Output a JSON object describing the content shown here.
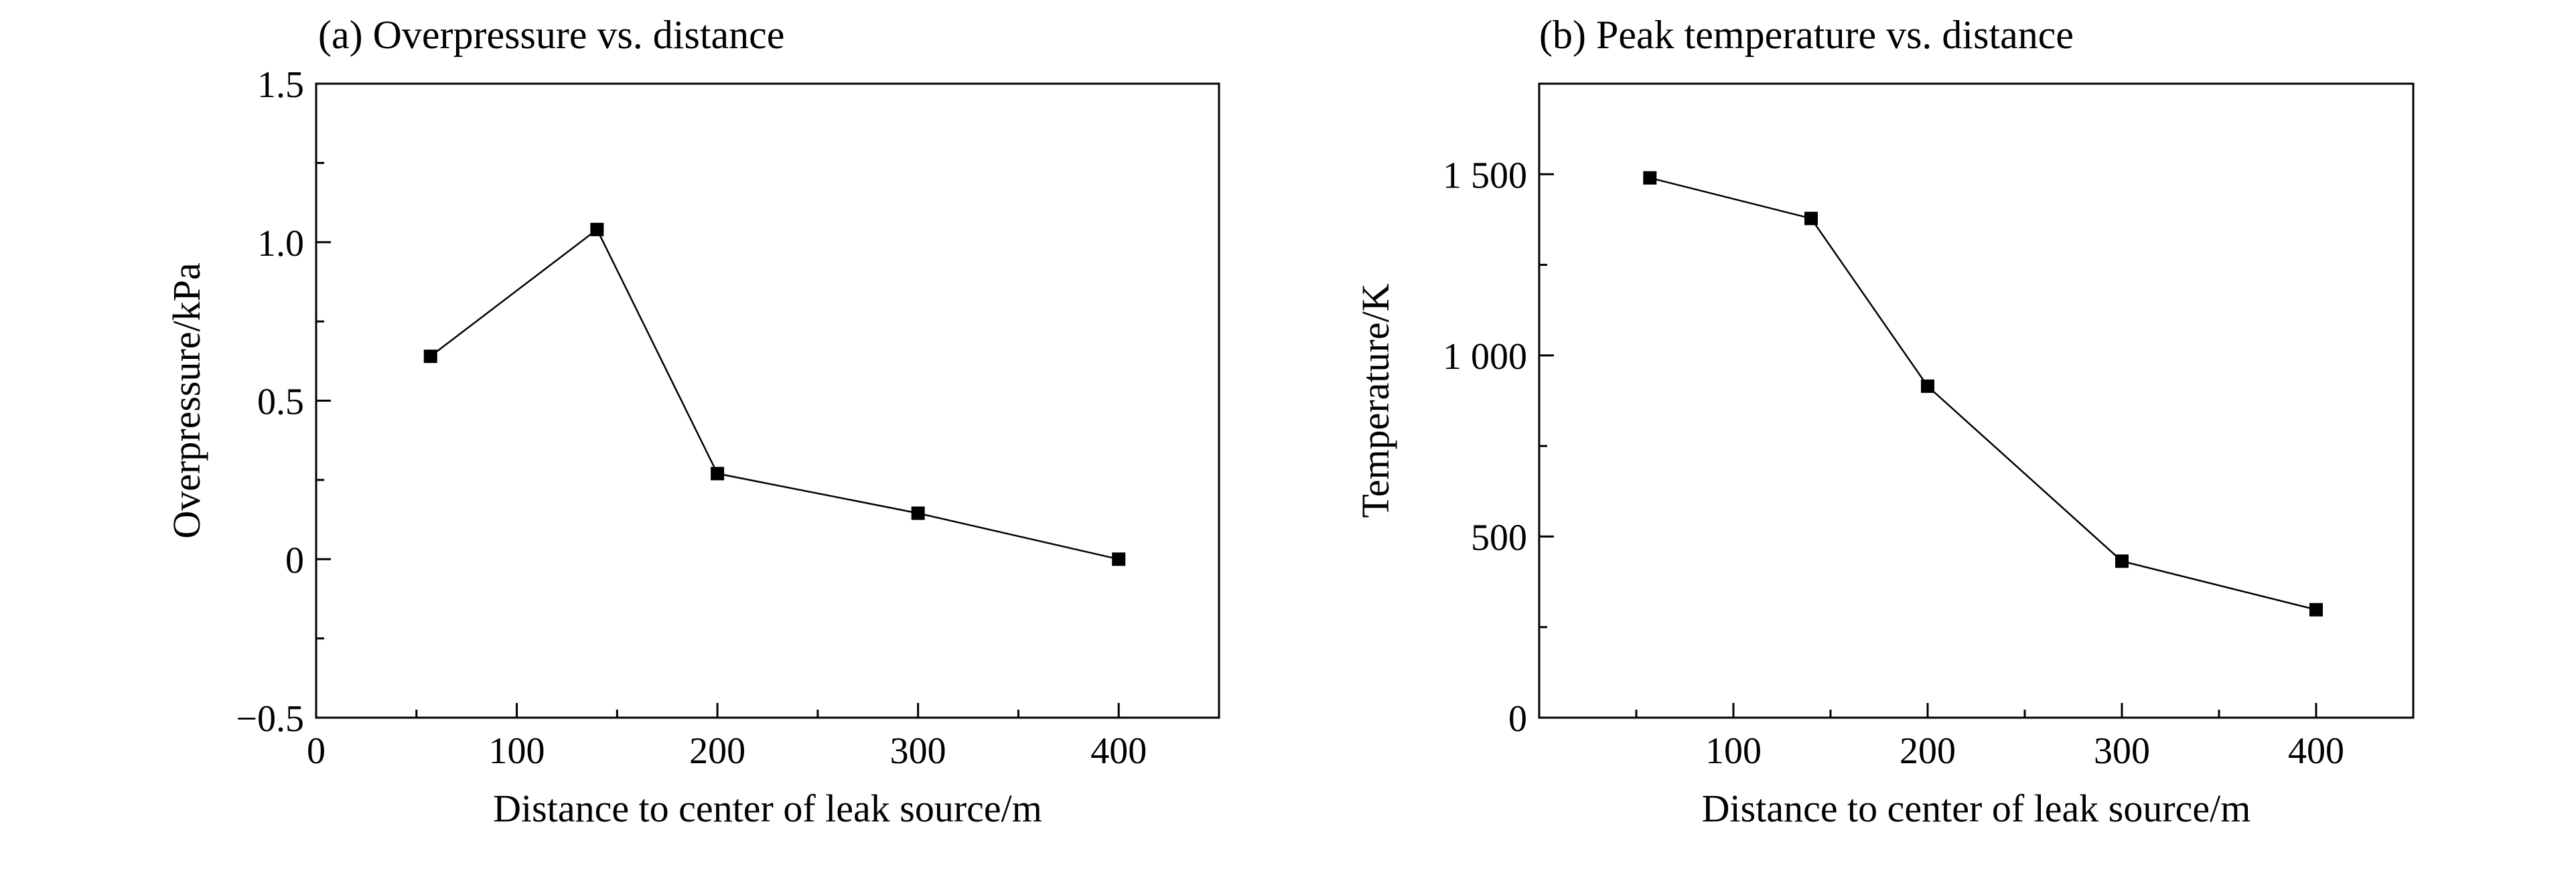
{
  "chart_data": [
    {
      "type": "line",
      "title": "(a) Overpressure vs. distance",
      "xlabel": "Distance to center of leak source/m",
      "ylabel": "Overpressure/kPa",
      "xlim": [
        0,
        450
      ],
      "ylim": [
        -0.5,
        1.5
      ],
      "xticks": [
        0,
        100,
        200,
        300,
        400
      ],
      "xtick_labels": [
        "0",
        "100",
        "200",
        "300",
        "400"
      ],
      "yticks": [
        -0.5,
        0,
        0.5,
        1.0,
        1.5
      ],
      "ytick_labels": [
        "−0.5",
        "0",
        "0.5",
        "1.0",
        "1.5"
      ],
      "grid": false,
      "series": [
        {
          "x": [
            57,
            140,
            200,
            300,
            400
          ],
          "y": [
            0.64,
            1.04,
            0.27,
            0.145,
            0.0
          ]
        }
      ],
      "line_color": "#000000",
      "marker": "square"
    },
    {
      "type": "line",
      "title": "(b) Peak temperature vs. distance",
      "xlabel": "Distance to center of leak source/m",
      "ylabel": "Temperature/K",
      "xlim": [
        0,
        450
      ],
      "ylim": [
        0,
        1750
      ],
      "xticks": [
        100,
        200,
        300,
        400
      ],
      "xtick_labels": [
        "100",
        "200",
        "300",
        "400"
      ],
      "yticks": [
        0,
        500,
        1000,
        1500
      ],
      "ytick_labels": [
        "0",
        "500",
        "1 000",
        "1 500"
      ],
      "grid": false,
      "series": [
        {
          "x": [
            57,
            140,
            200,
            300,
            400
          ],
          "y": [
            1490,
            1378,
            915,
            432,
            298
          ]
        }
      ],
      "line_color": "#000000",
      "marker": "square"
    }
  ]
}
